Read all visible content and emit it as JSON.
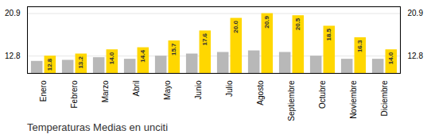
{
  "chart_data": {
    "type": "bar",
    "title": "Temperaturas Medias en unciti",
    "categories": [
      "Enero",
      "Febrero",
      "Marzo",
      "Abril",
      "Mayo",
      "Junio",
      "Julio",
      "Agosto",
      "Septiembre",
      "Octubre",
      "Noviembre",
      "Diciembre"
    ],
    "series": [
      {
        "color": "#b8b8b8",
        "values": [
          11.8,
          12.0,
          12.5,
          12.2,
          12.8,
          13.2,
          13.5,
          13.8,
          13.5,
          12.8,
          12.2,
          12.2
        ]
      },
      {
        "color": "#FFD700",
        "values": [
          12.8,
          13.2,
          14.0,
          14.4,
          15.7,
          17.6,
          20.0,
          20.9,
          20.5,
          18.5,
          16.3,
          14.0
        ],
        "data_labels": true,
        "value_labels": [
          "12.8",
          "13.2",
          "14.0",
          "14.4",
          "15.7",
          "17.6",
          "20.0",
          "20.9",
          "20.5",
          "18.5",
          "16.3",
          "14.0"
        ]
      }
    ],
    "ylim": [
      9.5,
      22.2
    ],
    "yticks": [
      12.8,
      20.9
    ],
    "y2lim": [
      9.5,
      22.2
    ],
    "y2ticks": [
      12.8,
      20.9
    ],
    "grid": true
  }
}
